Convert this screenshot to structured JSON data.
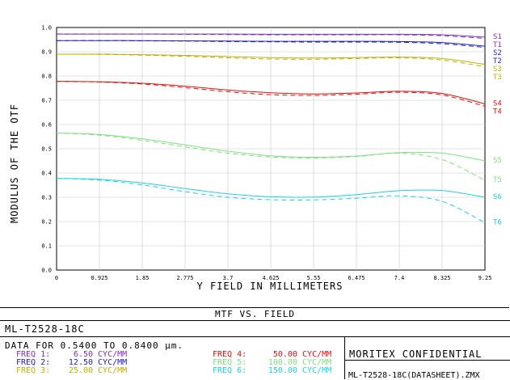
{
  "chart_data": {
    "type": "line",
    "title": "MTF VS. FIELD",
    "xlabel": "Y FIELD IN MILLIMETERS",
    "ylabel": "MODULUS OF THE OTF",
    "xlim": [
      0,
      9.25
    ],
    "ylim": [
      0,
      1.0
    ],
    "x_ticks": [
      "0",
      "0.925",
      "1.85",
      "2.775",
      "3.7",
      "4.625",
      "5.55",
      "6.475",
      "7.4",
      "8.325",
      "9.25"
    ],
    "y_ticks": [
      "0.0",
      "0.1",
      "0.2",
      "0.3",
      "0.4",
      "0.5",
      "0.6",
      "0.7",
      "0.8",
      "0.9",
      "1.0"
    ],
    "grid": true,
    "x": [
      0,
      0.925,
      1.85,
      2.775,
      3.7,
      4.625,
      5.55,
      6.475,
      7.4,
      8.325,
      9.25
    ],
    "series": [
      {
        "name": "S1",
        "style": "solid",
        "color": "#8030c0",
        "values": [
          0.973,
          0.973,
          0.973,
          0.973,
          0.973,
          0.972,
          0.972,
          0.972,
          0.972,
          0.97,
          0.96
        ]
      },
      {
        "name": "T1",
        "style": "dashed",
        "color": "#8030c0",
        "values": [
          0.973,
          0.973,
          0.973,
          0.972,
          0.971,
          0.97,
          0.97,
          0.97,
          0.97,
          0.966,
          0.955
        ]
      },
      {
        "name": "S2",
        "style": "solid",
        "color": "#2020c0",
        "values": [
          0.946,
          0.946,
          0.946,
          0.945,
          0.944,
          0.943,
          0.943,
          0.943,
          0.942,
          0.938,
          0.923
        ]
      },
      {
        "name": "T2",
        "style": "dashed",
        "color": "#2020c0",
        "values": [
          0.946,
          0.946,
          0.945,
          0.944,
          0.942,
          0.941,
          0.94,
          0.94,
          0.939,
          0.933,
          0.918
        ]
      },
      {
        "name": "S3",
        "style": "solid",
        "color": "#c0b000",
        "values": [
          0.89,
          0.89,
          0.888,
          0.885,
          0.88,
          0.876,
          0.874,
          0.876,
          0.878,
          0.872,
          0.848
        ]
      },
      {
        "name": "T3",
        "style": "dashed",
        "color": "#c0b000",
        "values": [
          0.89,
          0.889,
          0.886,
          0.881,
          0.875,
          0.87,
          0.869,
          0.872,
          0.875,
          0.866,
          0.838
        ]
      },
      {
        "name": "S4",
        "style": "solid",
        "color": "#e01010",
        "values": [
          0.778,
          0.776,
          0.77,
          0.758,
          0.742,
          0.731,
          0.726,
          0.73,
          0.737,
          0.728,
          0.685
        ]
      },
      {
        "name": "T4",
        "style": "dashed",
        "color": "#e01010",
        "values": [
          0.778,
          0.775,
          0.767,
          0.752,
          0.735,
          0.723,
          0.72,
          0.725,
          0.733,
          0.722,
          0.675
        ]
      },
      {
        "name": "S5",
        "style": "solid",
        "color": "#80e080",
        "values": [
          0.565,
          0.559,
          0.541,
          0.516,
          0.49,
          0.471,
          0.465,
          0.47,
          0.484,
          0.482,
          0.45
        ]
      },
      {
        "name": "T5",
        "style": "dashed",
        "color": "#80e080",
        "values": [
          0.565,
          0.556,
          0.535,
          0.508,
          0.482,
          0.466,
          0.462,
          0.468,
          0.482,
          0.455,
          0.37
        ]
      },
      {
        "name": "S6",
        "style": "solid",
        "color": "#20d0e0",
        "values": [
          0.378,
          0.374,
          0.359,
          0.336,
          0.314,
          0.302,
          0.301,
          0.311,
          0.327,
          0.328,
          0.3
        ]
      },
      {
        "name": "T6",
        "style": "dashed",
        "color": "#20d0e0",
        "values": [
          0.378,
          0.371,
          0.351,
          0.323,
          0.3,
          0.29,
          0.289,
          0.296,
          0.306,
          0.283,
          0.195
        ]
      }
    ]
  },
  "footer": {
    "title": "MTF VS. FIELD",
    "lens_name": "ML-T2528-18C",
    "data_range": "DATA FOR 0.5400 TO 0.8400 µm.",
    "frequencies": [
      {
        "label": "FREQ 1:",
        "value": "6.50 CYC/MM",
        "color": "#8030c0"
      },
      {
        "label": "FREQ 2:",
        "value": "12.50 CYC/MM",
        "color": "#2020c0"
      },
      {
        "label": "FREQ 3:",
        "value": "25.00 CYC/MM",
        "color": "#c0b000"
      },
      {
        "label": "FREQ 4:",
        "value": "50.00 CYC/MM",
        "color": "#e01010"
      },
      {
        "label": "FREQ 5:",
        "value": "100.00 CYC/MM",
        "color": "#80e080"
      },
      {
        "label": "FREQ 6:",
        "value": "150.00 CYC/MM",
        "color": "#20d0e0"
      }
    ],
    "confidential": "MORITEX CONFIDENTIAL",
    "filename": "ML-T2528-18C(DATASHEET).ZMX"
  }
}
